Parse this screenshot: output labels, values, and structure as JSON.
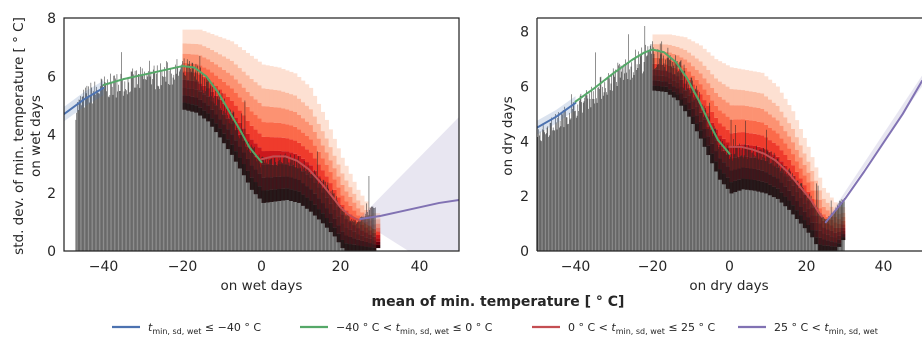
{
  "figure": {
    "shared_xlabel": "mean of min. temperature [$^\\circ$C]",
    "shared_xlabel_text": "mean of min. temperature [ ° C]",
    "legend_position": "bottom-center"
  },
  "chart_data": [
    {
      "type": "bar",
      "ylabel_line1": "std. dev. of min. temperature [ ° C]",
      "ylabel_line2": "on wet days",
      "xlabel": "on wet days",
      "xlim": [
        -50,
        50
      ],
      "ylim": [
        0,
        8
      ],
      "xticks": [
        "−40",
        "−20",
        "0",
        "20",
        "40"
      ],
      "yticks": [
        "0",
        "2",
        "4",
        "6",
        "8"
      ],
      "xtick_values": [
        -40,
        -20,
        0,
        20,
        40
      ],
      "ytick_values": [
        0,
        2,
        4,
        6,
        8
      ],
      "bars_x_range": [
        -47,
        29
      ],
      "bar_envelope": [
        [
          -47,
          5.0
        ],
        [
          -44,
          5.5
        ],
        [
          -40,
          5.75
        ],
        [
          -35,
          5.9
        ],
        [
          -30,
          6.05
        ],
        [
          -25,
          6.2
        ],
        [
          -20,
          6.35
        ],
        [
          -17,
          6.25
        ],
        [
          -14,
          5.95
        ],
        [
          -11,
          5.4
        ],
        [
          -8,
          4.8
        ],
        [
          -5,
          4.1
        ],
        [
          -3,
          3.6
        ],
        [
          0,
          3.15
        ],
        [
          3,
          3.2
        ],
        [
          6,
          3.25
        ],
        [
          9,
          3.15
        ],
        [
          12,
          2.85
        ],
        [
          15,
          2.45
        ],
        [
          18,
          2.0
        ],
        [
          20,
          1.6
        ],
        [
          22,
          1.2
        ],
        [
          24,
          1.0
        ],
        [
          26,
          1.2
        ],
        [
          28,
          1.5
        ],
        [
          29,
          1.6
        ]
      ],
      "density_upper": [
        [
          -20,
          7.6
        ],
        [
          -16,
          7.6
        ],
        [
          -12,
          7.4
        ],
        [
          -8,
          7.2
        ],
        [
          -4,
          6.8
        ],
        [
          0,
          6.4
        ],
        [
          4,
          6.3
        ],
        [
          8,
          6.1
        ],
        [
          12,
          5.6
        ],
        [
          16,
          4.5
        ],
        [
          20,
          3.2
        ],
        [
          24,
          2.1
        ],
        [
          28,
          1.3
        ]
      ],
      "fits": [
        {
          "segment": 0,
          "points": [
            [
              -50,
              4.7
            ],
            [
              -45,
              5.2
            ],
            [
              -40,
              5.6
            ]
          ],
          "ci": 0.2
        },
        {
          "segment": 1,
          "points": [
            [
              -40,
              5.7
            ],
            [
              -35,
              5.9
            ],
            [
              -30,
              6.05
            ],
            [
              -25,
              6.2
            ],
            [
              -20,
              6.35
            ],
            [
              -17,
              6.3
            ],
            [
              -14,
              6.0
            ],
            [
              -11,
              5.45
            ],
            [
              -8,
              4.75
            ],
            [
              -5,
              4.05
            ],
            [
              -3,
              3.55
            ],
            [
              0,
              3.05
            ]
          ],
          "ci": 0.0
        },
        {
          "segment": 2,
          "points": [
            [
              0,
              3.15
            ],
            [
              3,
              3.25
            ],
            [
              6,
              3.25
            ],
            [
              9,
              3.1
            ],
            [
              12,
              2.8
            ],
            [
              15,
              2.35
            ],
            [
              18,
              1.85
            ],
            [
              20,
              1.5
            ],
            [
              22,
              1.25
            ],
            [
              24,
              1.1
            ],
            [
              25,
              1.05
            ]
          ],
          "ci": 0.0
        },
        {
          "segment": 3,
          "points": [
            [
              25,
              1.1
            ],
            [
              30,
              1.2
            ],
            [
              35,
              1.35
            ],
            [
              40,
              1.5
            ],
            [
              45,
              1.65
            ],
            [
              50,
              1.75
            ]
          ],
          "ci_upper": [
            [
              25,
              1.15
            ],
            [
              50,
              4.6
            ]
          ],
          "ci_lower": [
            [
              25,
              1.05
            ],
            [
              50,
              -1.1
            ]
          ]
        }
      ]
    },
    {
      "type": "bar",
      "ylabel_line1": "on dry days",
      "xlabel": "on dry days",
      "xlim": [
        -50,
        50
      ],
      "ylim": [
        0,
        8.5
      ],
      "xticks": [
        "−40",
        "−20",
        "0",
        "20",
        "40"
      ],
      "yticks": [
        "0",
        "2",
        "4",
        "6",
        "8"
      ],
      "xtick_values": [
        -40,
        -20,
        0,
        20,
        40
      ],
      "ytick_values": [
        0,
        2,
        4,
        6,
        8
      ],
      "bars_x_range": [
        -50,
        30
      ],
      "bar_envelope": [
        [
          -50,
          4.3
        ],
        [
          -45,
          4.8
        ],
        [
          -40,
          5.35
        ],
        [
          -35,
          5.9
        ],
        [
          -30,
          6.5
        ],
        [
          -25,
          7.0
        ],
        [
          -22,
          7.25
        ],
        [
          -20,
          7.35
        ],
        [
          -17,
          7.3
        ],
        [
          -14,
          7.0
        ],
        [
          -11,
          6.4
        ],
        [
          -8,
          5.6
        ],
        [
          -5,
          4.7
        ],
        [
          -3,
          4.1
        ],
        [
          0,
          3.6
        ],
        [
          3,
          3.75
        ],
        [
          6,
          3.7
        ],
        [
          9,
          3.6
        ],
        [
          12,
          3.4
        ],
        [
          15,
          3.0
        ],
        [
          18,
          2.5
        ],
        [
          21,
          2.0
        ],
        [
          23,
          1.5
        ],
        [
          25,
          1.1
        ],
        [
          27,
          1.4
        ],
        [
          29,
          1.9
        ],
        [
          30,
          2.0
        ]
      ],
      "density_upper": [
        [
          -20,
          7.9
        ],
        [
          -16,
          7.9
        ],
        [
          -12,
          7.8
        ],
        [
          -8,
          7.5
        ],
        [
          -4,
          7.0
        ],
        [
          0,
          6.7
        ],
        [
          4,
          6.6
        ],
        [
          8,
          6.5
        ],
        [
          12,
          6.0
        ],
        [
          16,
          5.1
        ],
        [
          20,
          3.8
        ],
        [
          24,
          2.3
        ],
        [
          28,
          1.6
        ]
      ],
      "fits": [
        {
          "segment": 0,
          "points": [
            [
              -50,
              4.5
            ],
            [
              -45,
              4.9
            ],
            [
              -40,
              5.4
            ]
          ],
          "ci": 0.2
        },
        {
          "segment": 1,
          "points": [
            [
              -40,
              5.45
            ],
            [
              -35,
              5.95
            ],
            [
              -30,
              6.5
            ],
            [
              -25,
              7.0
            ],
            [
              -22,
              7.25
            ],
            [
              -20,
              7.35
            ],
            [
              -17,
              7.25
            ],
            [
              -14,
              6.9
            ],
            [
              -11,
              6.3
            ],
            [
              -8,
              5.5
            ],
            [
              -5,
              4.6
            ],
            [
              -3,
              4.05
            ],
            [
              0,
              3.55
            ]
          ],
          "ci": 0.0
        },
        {
          "segment": 2,
          "points": [
            [
              0,
              3.8
            ],
            [
              3,
              3.8
            ],
            [
              6,
              3.7
            ],
            [
              9,
              3.55
            ],
            [
              12,
              3.3
            ],
            [
              15,
              2.9
            ],
            [
              18,
              2.4
            ],
            [
              21,
              1.9
            ],
            [
              23,
              1.45
            ],
            [
              24,
              1.25
            ]
          ],
          "ci": 0.0
        },
        {
          "segment": 3,
          "points": [
            [
              25,
              1.05
            ],
            [
              30,
              1.9
            ],
            [
              35,
              2.9
            ],
            [
              40,
              3.95
            ],
            [
              45,
              5.0
            ],
            [
              50,
              6.2
            ]
          ],
          "ci_upper": [
            [
              25,
              1.1
            ],
            [
              50,
              6.4
            ]
          ],
          "ci_lower": [
            [
              25,
              1.0
            ],
            [
              50,
              6.0
            ]
          ]
        }
      ]
    }
  ],
  "colors": {
    "seg1": "#4c72b0",
    "seg2": "#55a868",
    "seg3": "#c44e52",
    "seg4": "#8172b3",
    "bars": "#262626",
    "ci": "#8172b3",
    "density": [
      "#fde0d2",
      "#fcbba1",
      "#fc9272",
      "#fb6a4a",
      "#ef3b2c",
      "#cb181d",
      "#a50f15",
      "#67000d",
      "#2a0005"
    ]
  },
  "legend": [
    {
      "series": 0,
      "main": "t",
      "sub": "min, sd, wet",
      "rest": " ≤ −40 ° C"
    },
    {
      "series": 1,
      "pre": "−40 ° C < ",
      "main": "t",
      "sub": "min, sd, wet",
      "rest": " ≤ 0 ° C"
    },
    {
      "series": 2,
      "pre": "0 ° C < ",
      "main": "t",
      "sub": "min, sd, wet",
      "rest": " ≤ 25 ° C"
    },
    {
      "series": 3,
      "pre": "25 ° C < ",
      "main": "t",
      "sub": "min, sd, wet",
      "rest": ""
    }
  ]
}
